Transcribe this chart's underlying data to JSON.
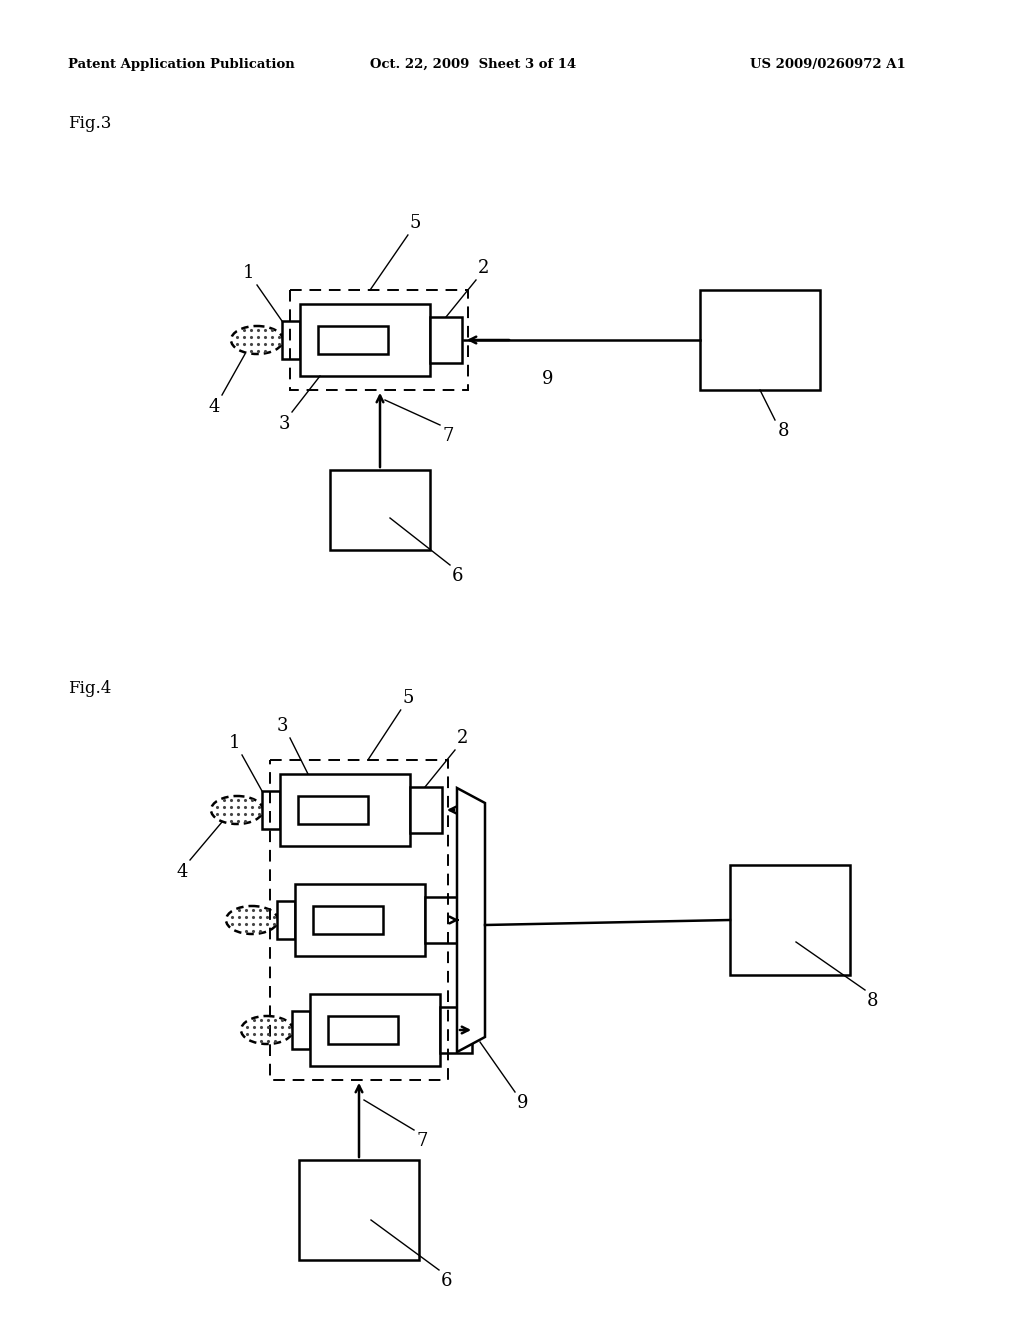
{
  "bg_color": "#ffffff",
  "header_text": "Patent Application Publication",
  "header_date": "Oct. 22, 2009  Sheet 3 of 14",
  "header_num": "US 2009/0260972 A1",
  "fig3_label": "Fig.3",
  "fig4_label": "Fig.4",
  "lc": "#000000"
}
